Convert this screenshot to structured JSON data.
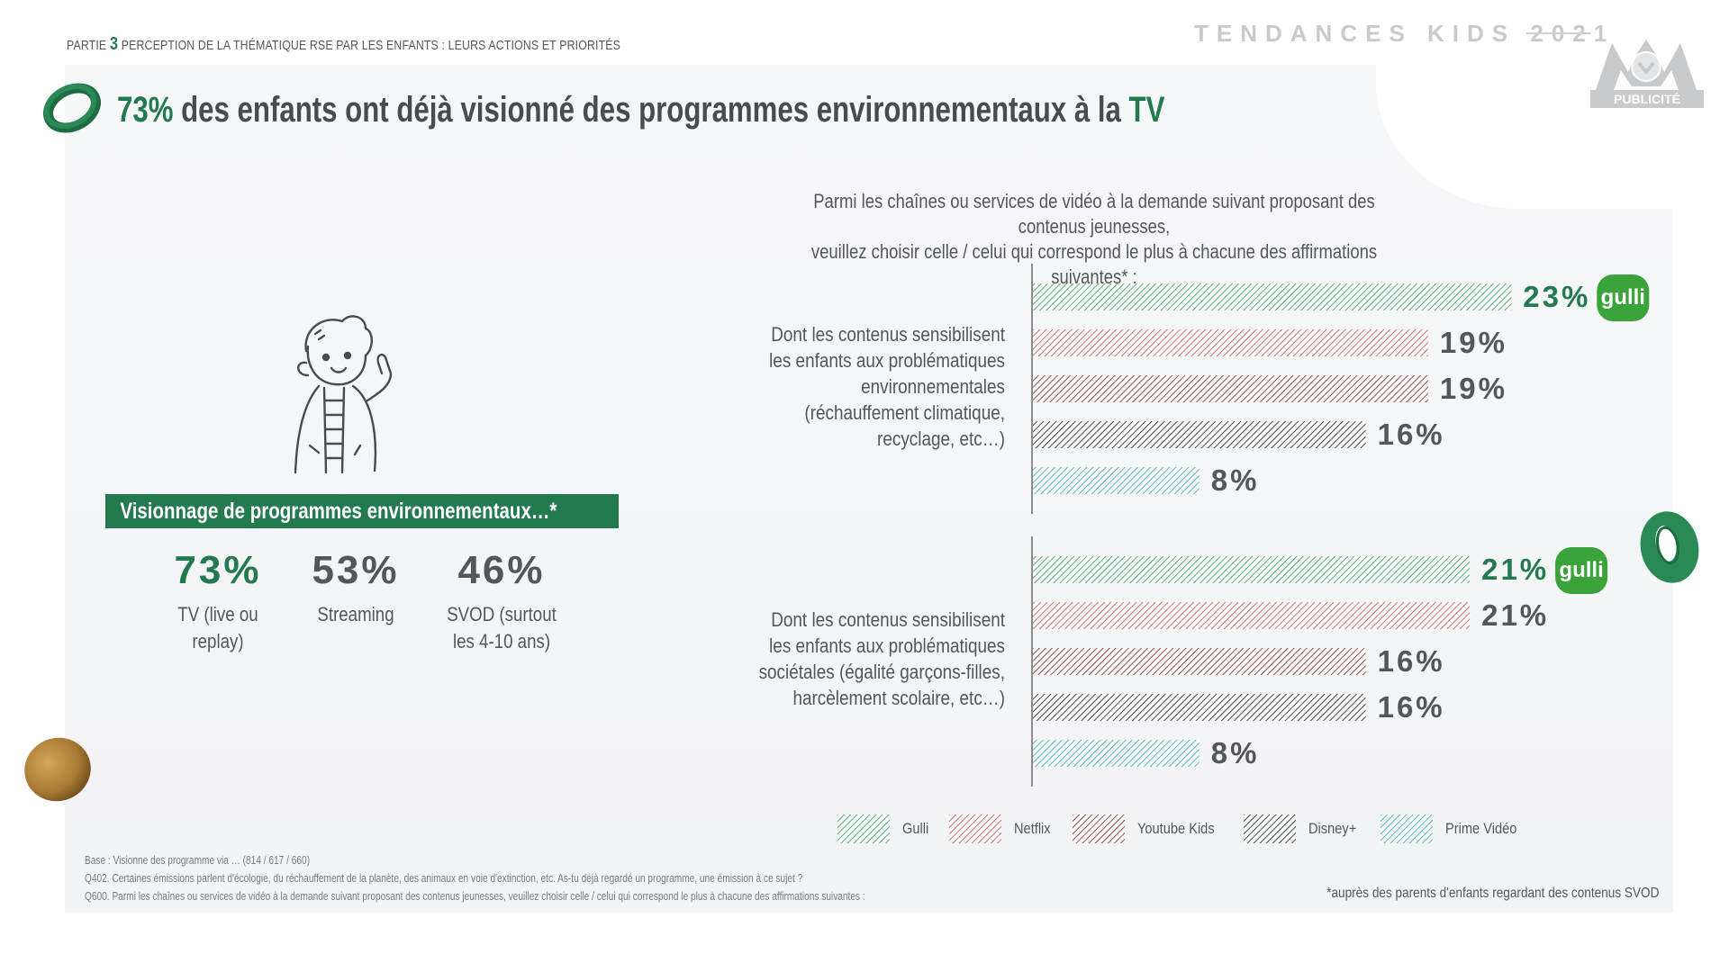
{
  "header": {
    "part_prefix": "PARTIE",
    "part_number": "3",
    "part_title": "PERCEPTION DE LA THÉMATIQUE RSE PAR LES ENFANTS : LEURS ACTIONS ET PRIORITÉS",
    "brand": "TENDANCES KIDS 2021",
    "logo_badge": "PUBLICITÉ"
  },
  "title": {
    "highlight": "73%",
    "text": " des enfants ont déjà visionné des programmes environnementaux à la ",
    "highlight_end": "TV"
  },
  "viewing": {
    "band_label": "Visionnage de programmes environnementaux…*",
    "stats": [
      {
        "value": "73%",
        "label_line1": "TV (live ou",
        "label_line2": "replay)"
      },
      {
        "value": "53%",
        "label_line1": "Streaming",
        "label_line2": ""
      },
      {
        "value": "46%",
        "label_line1": "SVOD (surtout",
        "label_line2": "les 4-10 ans)"
      }
    ]
  },
  "question": {
    "line1": "Parmi les chaînes ou services de vidéo à la demande suivant proposant des contenus jeunesses,",
    "line2": "veuillez choisir celle / celui qui correspond le plus à chacune des affirmations suivantes* :"
  },
  "chart_data": {
    "type": "bar",
    "orientation": "horizontal",
    "unit": "%",
    "title": "",
    "xlabel": "",
    "ylabel": "",
    "xlim": [
      0,
      25
    ],
    "grid": false,
    "legend_position": "bottom",
    "categories": [
      [
        "Dont les contenus sensibilisent",
        "les enfants aux problématiques",
        "environnementales",
        "(réchauffement climatique,",
        "recyclage, etc…)"
      ],
      [
        "Dont les contenus sensibilisent",
        "les enfants aux problématiques",
        "sociétales (égalité garçons-filles,",
        "harcèlement scolaire, etc…)"
      ]
    ],
    "series": [
      {
        "name": "Gulli",
        "color": "#2f9a5a",
        "values": [
          23,
          21
        ],
        "highlight": true
      },
      {
        "name": "Netflix",
        "color": "#c0504d",
        "values": [
          19,
          21
        ]
      },
      {
        "name": "Youtube Kids",
        "color": "#7a1f1f",
        "values": [
          19,
          16
        ]
      },
      {
        "name": "Disney+",
        "color": "#1a1a1a",
        "values": [
          16,
          16
        ]
      },
      {
        "name": "Prime Vidéo",
        "color": "#2ba8b0",
        "values": [
          8,
          8
        ]
      }
    ],
    "top_badge": "gulli"
  },
  "footer": {
    "base": "Base : Visionne des programme via … (814 / 617 / 660)",
    "q402": "Q402. Certaines émissions parlent d'écologie, du réchauffement de la planète, des animaux en voie d'extinction, etc. As-tu déjà regardé un programme, une émission à ce sujet ?",
    "q600": "Q600. Parmi les chaînes ou services de vidéo à la demande suivant proposant des contenus jeunesses, veuillez choisir celle / celui qui correspond le plus à chacune des affirmations suivantes :",
    "footnote": "*auprès des parents d'enfants regardant des contenus SVOD"
  },
  "colors": {
    "accent_green": "#227a4e",
    "text_gray": "#55565a",
    "brand_gray": "#c9cacc"
  }
}
